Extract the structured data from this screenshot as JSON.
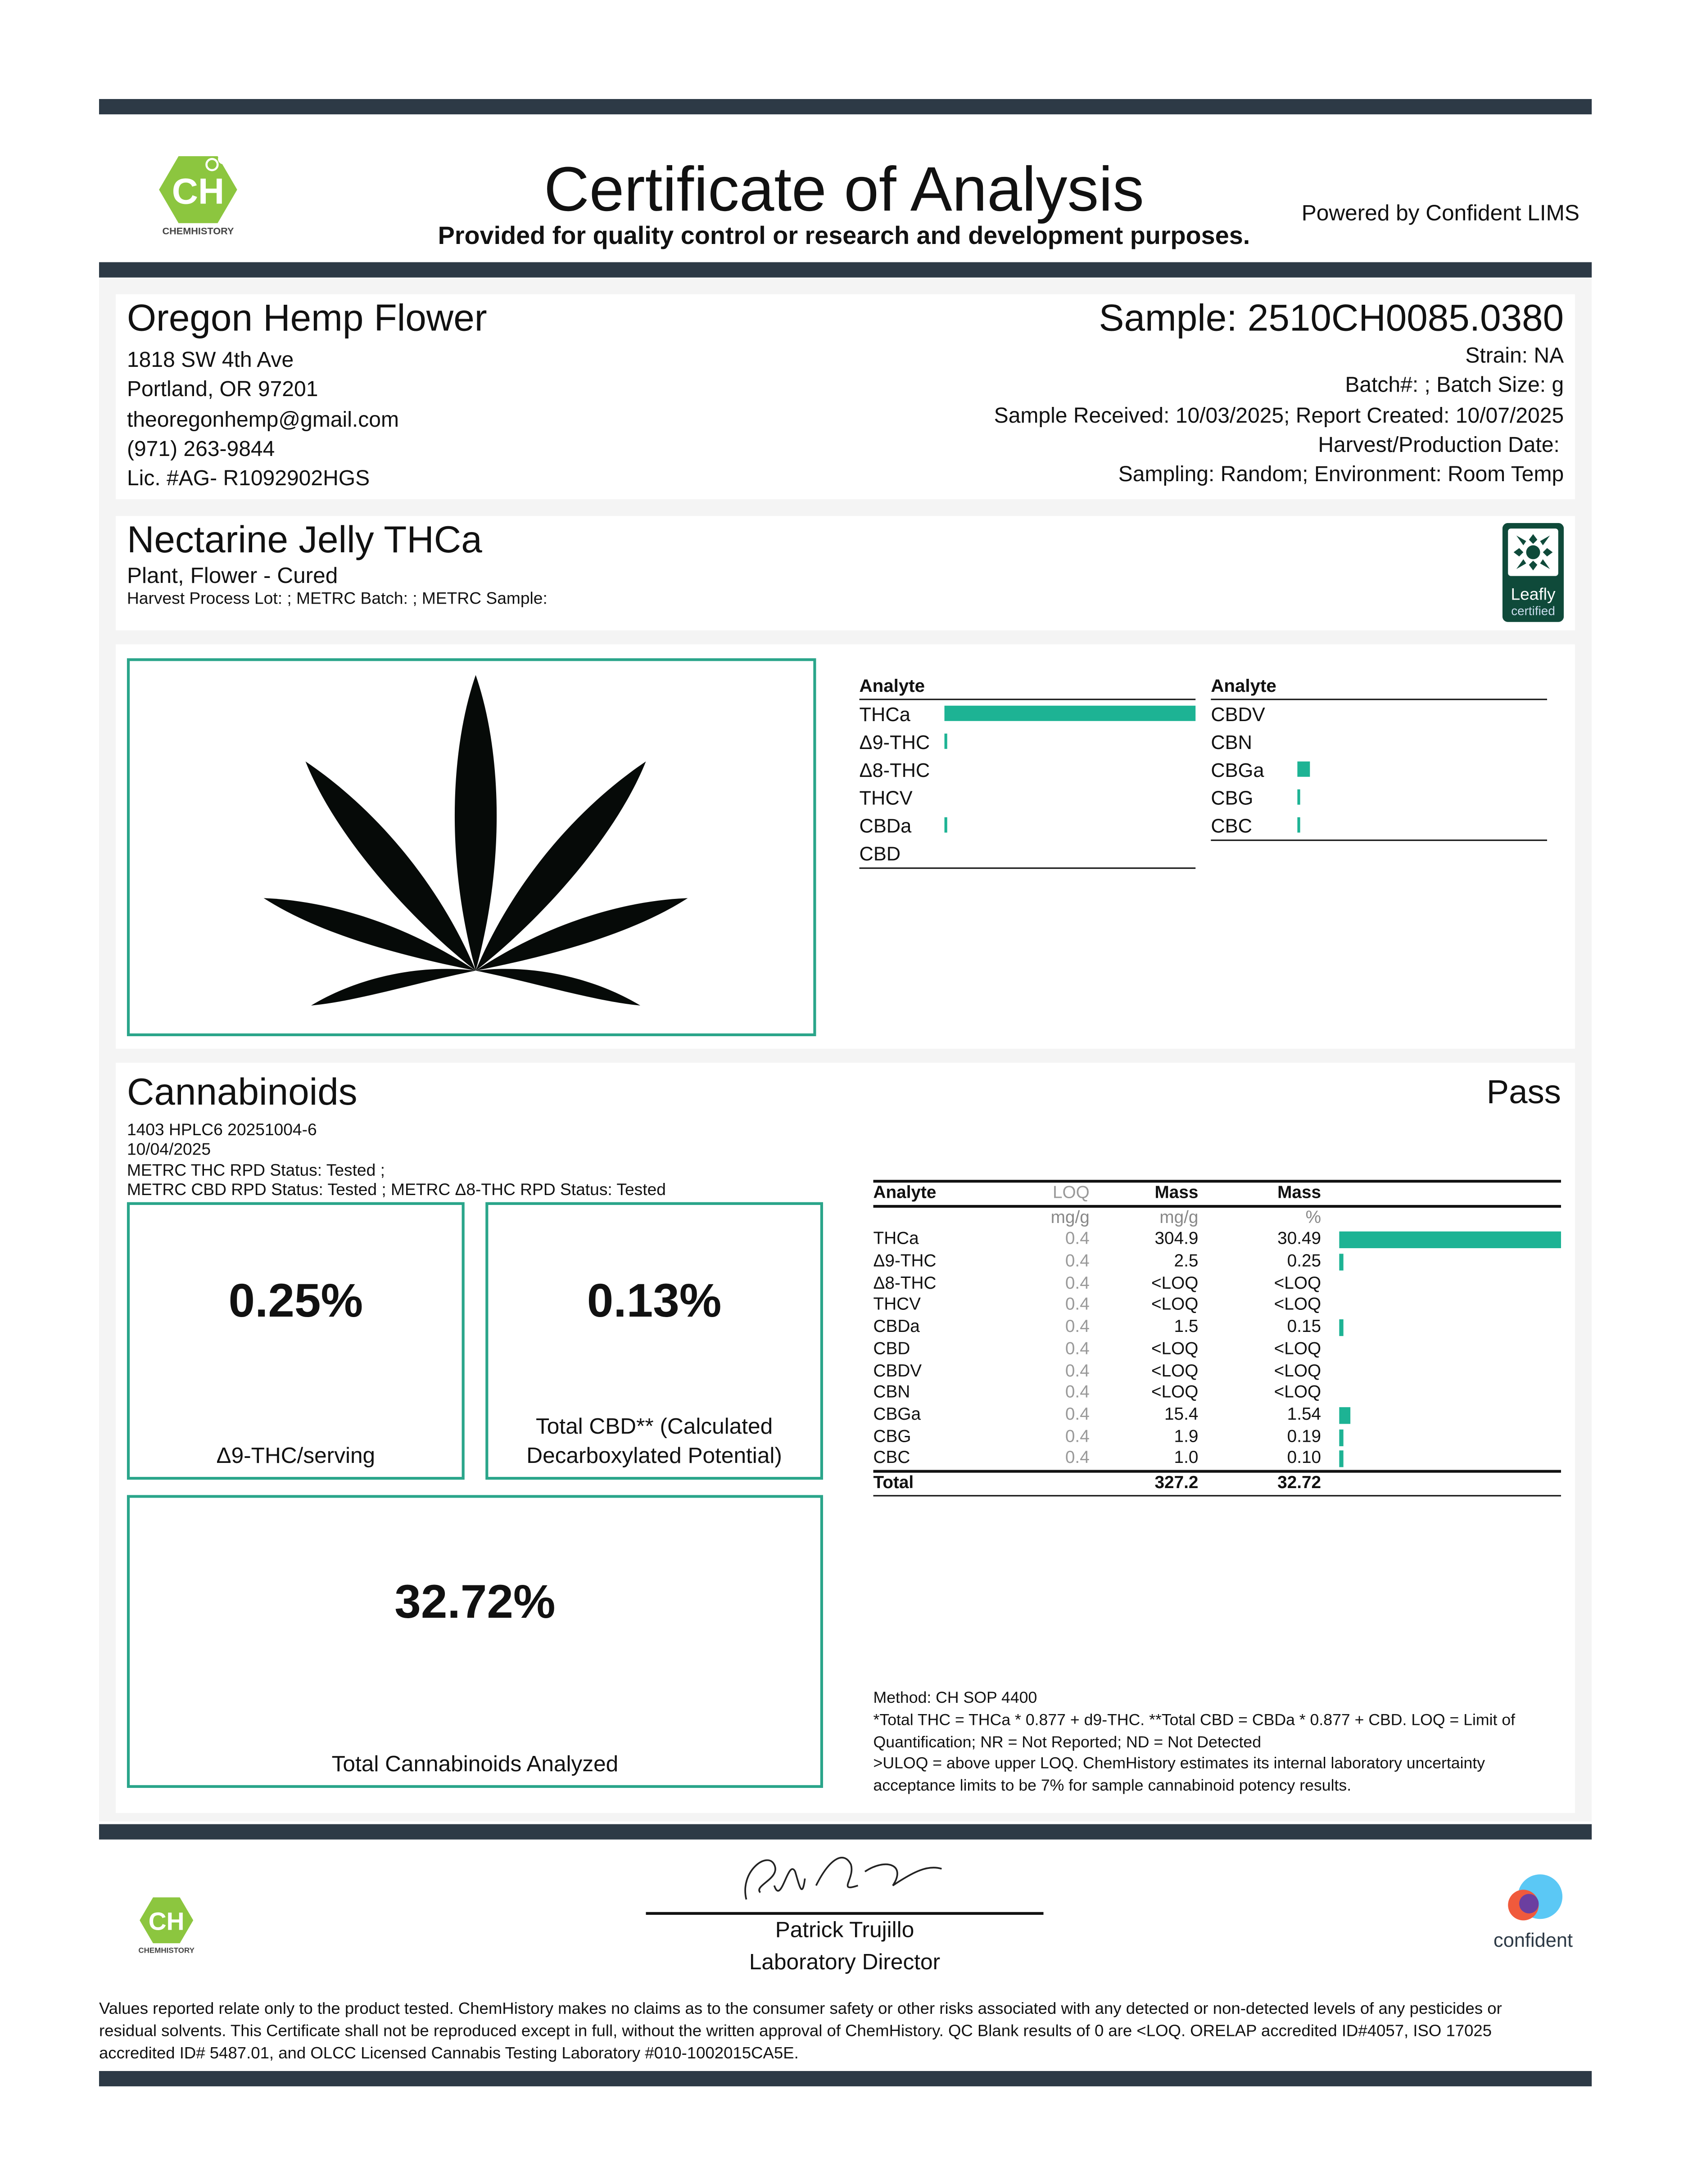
{
  "header": {
    "title": "Certificate of Analysis",
    "subtitle": "Provided for quality control or research and development purposes.",
    "powered_by": "Powered by Confident LIMS",
    "logo_text": "CHEMHISTORY"
  },
  "client": {
    "name": "Oregon Hemp Flower",
    "lines": [
      "1818 SW 4th Ave",
      "Portland, OR 97201",
      "theoregonhemp@gmail.com",
      "(971) 263-9844",
      "Lic. #AG- R1092902HGS"
    ]
  },
  "sample": {
    "title": "Sample: 2510CH0085.0380",
    "lines": [
      "Strain: NA",
      "Batch#: ; Batch Size:  g",
      "Sample Received: 10/03/2025; Report Created: 10/07/2025",
      "Harvest/Production Date: ",
      "Sampling: Random; Environment: Room Temp"
    ]
  },
  "product": {
    "name": "Nectarine Jelly THCa",
    "type": "Plant, Flower - Cured",
    "meta": "Harvest Process Lot: ; METRC Batch: ; METRC Sample:",
    "badge_line1": "Leafly",
    "badge_line2": "certified"
  },
  "summary": {
    "header": "Analyte",
    "left": [
      {
        "name": "THCa",
        "pct": 30.49
      },
      {
        "name": "Δ9-THC",
        "pct": 0.25
      },
      {
        "name": "Δ8-THC",
        "pct": 0
      },
      {
        "name": "THCV",
        "pct": 0
      },
      {
        "name": "CBDa",
        "pct": 0.15
      },
      {
        "name": "CBD",
        "pct": 0
      }
    ],
    "right": [
      {
        "name": "CBDV",
        "pct": 0
      },
      {
        "name": "CBN",
        "pct": 0
      },
      {
        "name": "CBGa",
        "pct": 1.54
      },
      {
        "name": "CBG",
        "pct": 0.19
      },
      {
        "name": "CBC",
        "pct": 0.1
      }
    ]
  },
  "cannabinoids": {
    "title": "Cannabinoids",
    "status": "Pass",
    "meta": [
      "1403 HPLC6 20251004-6",
      "10/04/2025",
      "METRC THC RPD Status: Tested ;",
      "METRC CBD RPD Status: Tested ; METRC Δ8-THC RPD Status: Tested"
    ],
    "box1": {
      "value": "0.25%",
      "label": "Δ9-THC/serving"
    },
    "box2": {
      "value": "0.13%",
      "label1": "Total CBD** (Calculated",
      "label2": "Decarboxylated Potential)"
    },
    "box3": {
      "value": "32.72%",
      "label": "Total Cannabinoids Analyzed"
    },
    "table": {
      "headers": [
        "Analyte",
        "LOQ",
        "Mass",
        "Mass"
      ],
      "units": [
        "",
        "mg/g",
        "mg/g",
        "%"
      ],
      "rows": [
        [
          "THCa",
          "0.4",
          "304.9",
          "30.49"
        ],
        [
          "Δ9-THC",
          "0.4",
          "2.5",
          "0.25"
        ],
        [
          "Δ8-THC",
          "0.4",
          "<LOQ",
          "<LOQ"
        ],
        [
          "THCV",
          "0.4",
          "<LOQ",
          "<LOQ"
        ],
        [
          "CBDa",
          "0.4",
          "1.5",
          "0.15"
        ],
        [
          "CBD",
          "0.4",
          "<LOQ",
          "<LOQ"
        ],
        [
          "CBDV",
          "0.4",
          "<LOQ",
          "<LOQ"
        ],
        [
          "CBN",
          "0.4",
          "<LOQ",
          "<LOQ"
        ],
        [
          "CBGa",
          "0.4",
          "15.4",
          "1.54"
        ],
        [
          "CBG",
          "0.4",
          "1.9",
          "0.19"
        ],
        [
          "CBC",
          "0.4",
          "1.0",
          "0.10"
        ]
      ],
      "total": [
        "Total",
        "",
        "327.2",
        "32.72"
      ]
    },
    "notes": [
      "Method: CH SOP 4400",
      "*Total THC = THCa * 0.877 + d9-THC. **Total CBD = CBDa * 0.877 + CBD. LOQ = Limit of",
      "Quantification; NR = Not Reported; ND = Not Detected",
      ">ULOQ = above upper LOQ. ChemHistory estimates its internal laboratory uncertainty",
      "acceptance limits to be 7% for sample cannabinoid potency results."
    ]
  },
  "signature": {
    "name": "Patrick Trujillo",
    "title": "Laboratory Director"
  },
  "footer": {
    "confident": "confident",
    "disclaimer": [
      "Values reported relate only to the product tested. ChemHistory makes no claims as to the consumer safety or other risks associated with any detected or non-detected levels of any pesticides or",
      "residual solvents. This Certificate shall not be reproduced except in full, without the written approval of ChemHistory. QC Blank results of 0 are <LOQ.  ORELAP accredited ID#4057, ISO 17025",
      "accredited ID# 5487.01, and OLCC Licensed Cannabis Testing Laboratory #010-1002015CA5E."
    ]
  },
  "colors": {
    "accent": "#1db394",
    "border": "#2aa58a",
    "bar": "#2d3a46",
    "leafly": "#0f4a3a"
  }
}
